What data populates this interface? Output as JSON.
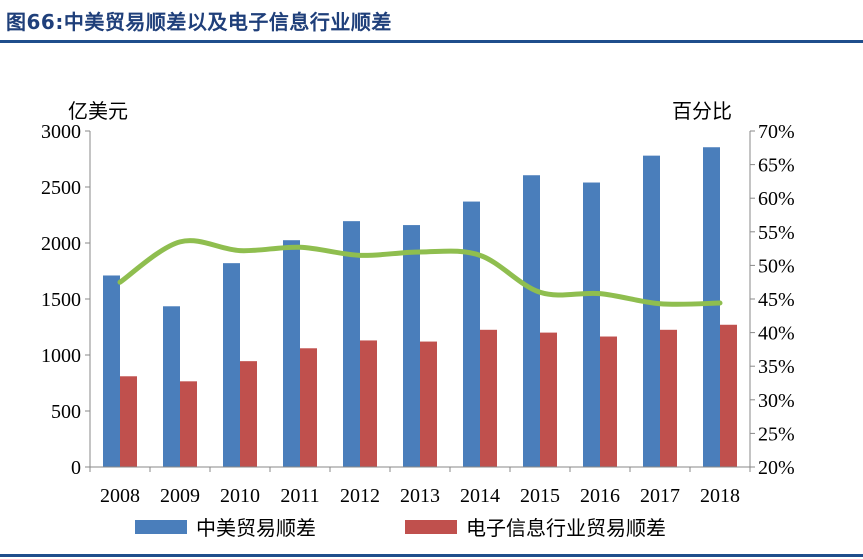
{
  "title": "图66:中美贸易顺差以及电子信息行业顺差",
  "chart_data": {
    "type": "bar",
    "categories": [
      "2008",
      "2009",
      "2010",
      "2011",
      "2012",
      "2013",
      "2014",
      "2015",
      "2016",
      "2017",
      "2018"
    ],
    "series": [
      {
        "name": "中美贸易顺差",
        "type": "bar",
        "axis": "left",
        "color": "#4a7ebb",
        "values": [
          1710,
          1435,
          1820,
          2025,
          2195,
          2160,
          2370,
          2605,
          2540,
          2780,
          2855
        ]
      },
      {
        "name": "电子信息行业贸易顺差",
        "type": "bar",
        "axis": "left",
        "color": "#c0504d",
        "values": [
          810,
          765,
          945,
          1060,
          1130,
          1120,
          1225,
          1200,
          1165,
          1225,
          1270
        ]
      },
      {
        "type": "line",
        "axis": "right",
        "color": "#8fbe4f",
        "values": [
          0.475,
          0.535,
          0.522,
          0.527,
          0.515,
          0.52,
          0.515,
          0.46,
          0.458,
          0.443,
          0.444
        ]
      }
    ],
    "y_left": {
      "label": "亿美元",
      "min": 0,
      "max": 3000,
      "ticks": [
        "0",
        "500",
        "1000",
        "1500",
        "2000",
        "2500",
        "3000"
      ]
    },
    "y_right": {
      "label": "百分比",
      "min": 0.2,
      "max": 0.7,
      "ticks": [
        "20%",
        "25%",
        "30%",
        "35%",
        "40%",
        "45%",
        "50%",
        "55%",
        "60%",
        "65%",
        "70%"
      ]
    },
    "grid": false,
    "legend_position": "bottom"
  }
}
